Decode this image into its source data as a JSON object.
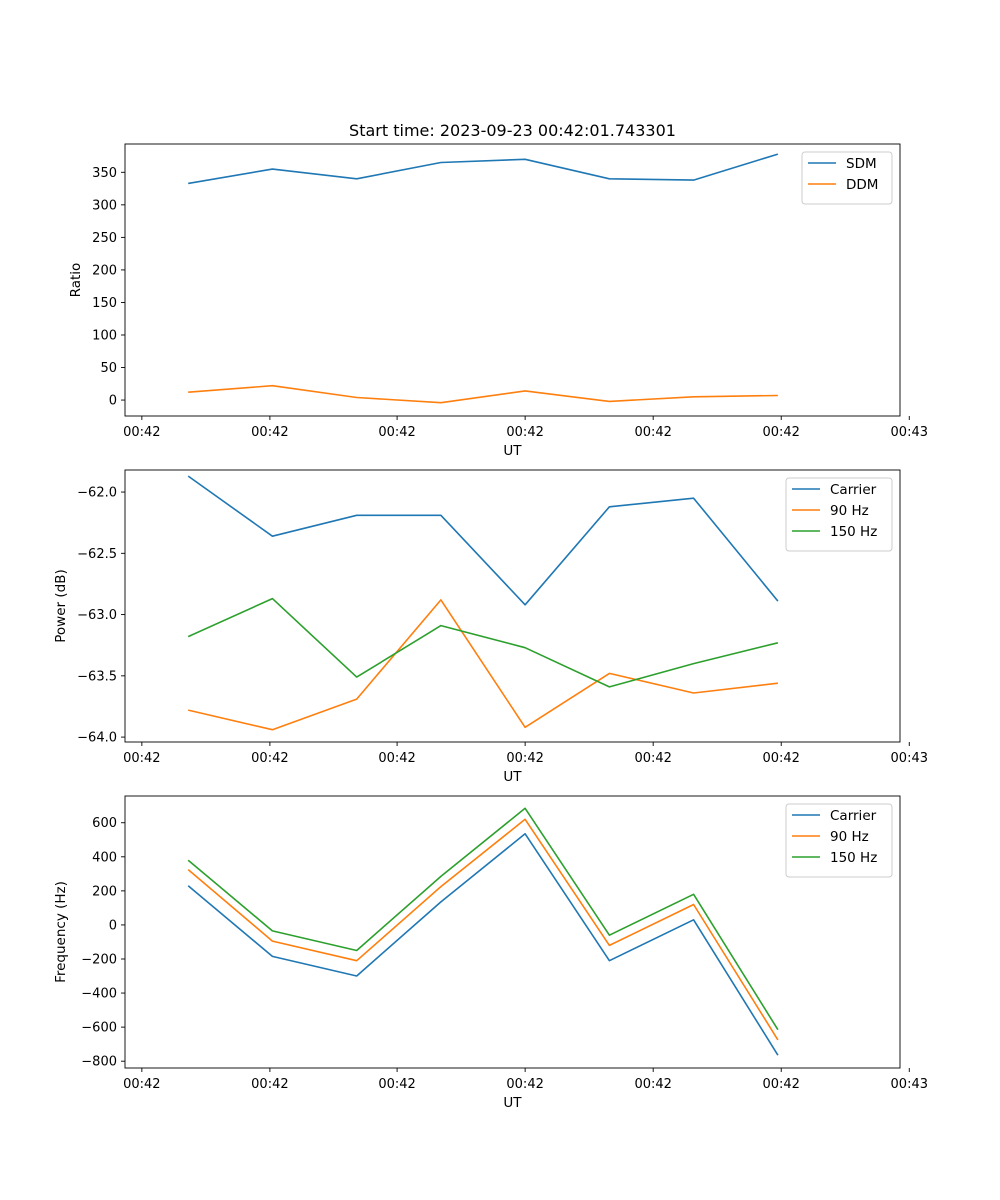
{
  "title": "Start time: 2023-09-23 00:42:01.743301",
  "colors": {
    "blue": "#1f77b4",
    "orange": "#ff7f0e",
    "green": "#2ca02c"
  },
  "chart_data": [
    {
      "type": "line",
      "title": "Start time: 2023-09-23 00:42:01.743301",
      "xlabel": "UT",
      "ylabel": "Ratio",
      "x": [
        1,
        2,
        3,
        4,
        5,
        6,
        7,
        8
      ],
      "xlim": [
        0.25,
        9.45
      ],
      "xticks": [
        0.45,
        1.97,
        3.48,
        5.0,
        6.52,
        8.04,
        9.56
      ],
      "xtick_labels": [
        "00:42",
        "00:42",
        "00:42",
        "00:42",
        "00:42",
        "00:42",
        "00:43"
      ],
      "ylim": [
        -24.5,
        393.5
      ],
      "yticks": [
        0,
        50,
        100,
        150,
        200,
        250,
        300,
        350
      ],
      "ytick_labels": [
        "0",
        "50",
        "100",
        "150",
        "200",
        "250",
        "300",
        "350"
      ],
      "legend_position": "top-right",
      "series": [
        {
          "name": "SDM",
          "color": "#1f77b4",
          "values": [
            333,
            355,
            340,
            365,
            370,
            340,
            338,
            378
          ]
        },
        {
          "name": "DDM",
          "color": "#ff7f0e",
          "values": [
            12,
            22,
            4,
            -4,
            14,
            -2,
            5,
            7
          ]
        }
      ]
    },
    {
      "type": "line",
      "title": "",
      "xlabel": "UT",
      "ylabel": "Power (dB)",
      "x": [
        1,
        2,
        3,
        4,
        5,
        6,
        7,
        8
      ],
      "xlim": [
        0.25,
        9.45
      ],
      "xticks": [
        0.45,
        1.97,
        3.48,
        5.0,
        6.52,
        8.04,
        9.56
      ],
      "xtick_labels": [
        "00:42",
        "00:42",
        "00:42",
        "00:42",
        "00:42",
        "00:42",
        "00:43"
      ],
      "ylim": [
        -64.04,
        -61.82
      ],
      "yticks": [
        -62.0,
        -62.5,
        -63.0,
        -63.5,
        -64.0
      ],
      "ytick_labels": [
        "−62.0",
        "−62.5",
        "−63.0",
        "−63.5",
        "−64.0"
      ],
      "legend_position": "top-right",
      "series": [
        {
          "name": "Carrier",
          "color": "#1f77b4",
          "values": [
            -61.87,
            -62.36,
            -62.19,
            -62.19,
            -62.92,
            -62.12,
            -62.05,
            -62.89
          ]
        },
        {
          "name": "90 Hz",
          "color": "#ff7f0e",
          "values": [
            -63.78,
            -63.94,
            -63.69,
            -62.88,
            -63.92,
            -63.48,
            -63.64,
            -63.56
          ]
        },
        {
          "name": "150 Hz",
          "color": "#2ca02c",
          "values": [
            -63.18,
            -62.87,
            -63.51,
            -63.09,
            -63.27,
            -63.59,
            -63.4,
            -63.23
          ]
        }
      ]
    },
    {
      "type": "line",
      "title": "",
      "xlabel": "UT",
      "ylabel": "Frequency (Hz)",
      "x": [
        1,
        2,
        3,
        4,
        5,
        6,
        7,
        8
      ],
      "xlim": [
        0.25,
        9.45
      ],
      "xticks": [
        0.45,
        1.97,
        3.48,
        5.0,
        6.52,
        8.04,
        9.56
      ],
      "xtick_labels": [
        "00:42",
        "00:42",
        "00:42",
        "00:42",
        "00:42",
        "00:42",
        "00:43"
      ],
      "ylim": [
        -840,
        757
      ],
      "yticks": [
        600,
        400,
        200,
        0,
        -200,
        -400,
        -600,
        -800
      ],
      "ytick_labels": [
        "600",
        "400",
        "200",
        "0",
        "−200",
        "−400",
        "−600",
        "−800"
      ],
      "legend_position": "top-right",
      "series": [
        {
          "name": "Carrier",
          "color": "#1f77b4",
          "values": [
            230,
            -185,
            -300,
            135,
            535,
            -210,
            30,
            -765
          ]
        },
        {
          "name": "90 Hz",
          "color": "#ff7f0e",
          "values": [
            325,
            -95,
            -210,
            225,
            620,
            -120,
            120,
            -675
          ]
        },
        {
          "name": "150 Hz",
          "color": "#2ca02c",
          "values": [
            380,
            -35,
            -150,
            285,
            685,
            -60,
            180,
            -615
          ]
        }
      ]
    }
  ]
}
